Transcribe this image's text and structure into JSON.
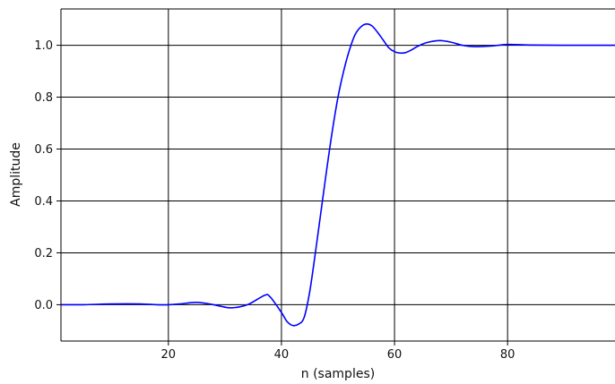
{
  "chart_data": {
    "type": "line",
    "title": "",
    "xlabel": "n (samples)",
    "ylabel": "Amplitude",
    "xlim": [
      1,
      99
    ],
    "ylim": [
      -0.14,
      1.14
    ],
    "grid": true,
    "xticks": [
      20,
      40,
      60,
      80
    ],
    "xtick_labels": [
      "20",
      "40",
      "60",
      "80"
    ],
    "yticks": [
      0.0,
      0.2,
      0.4,
      0.6,
      0.8,
      1.0
    ],
    "ytick_labels": [
      "0.0",
      "0.2",
      "0.4",
      "0.6",
      "0.8",
      "1.0"
    ],
    "series": [
      {
        "color": "#0000ff",
        "x": [
          1,
          5,
          10,
          15,
          18,
          20,
          22,
          25,
          28,
          31,
          34,
          37,
          38,
          40,
          41,
          42,
          43,
          44,
          45,
          46,
          47,
          48,
          49,
          50,
          51,
          52,
          53,
          54,
          55,
          56,
          57,
          58,
          59,
          60,
          61,
          62,
          63,
          64,
          65,
          66,
          68,
          70,
          72,
          74,
          77,
          80,
          84,
          90,
          99
        ],
        "y": [
          0.0,
          0.0,
          0.003,
          0.003,
          0.0,
          0.0,
          0.003,
          0.009,
          0.0,
          -0.012,
          0.0,
          0.036,
          0.03,
          -0.03,
          -0.065,
          -0.08,
          -0.075,
          -0.05,
          0.05,
          0.2,
          0.36,
          0.52,
          0.67,
          0.8,
          0.9,
          0.98,
          1.04,
          1.07,
          1.082,
          1.075,
          1.05,
          1.02,
          0.99,
          0.975,
          0.97,
          0.972,
          0.982,
          0.995,
          1.005,
          1.012,
          1.018,
          1.012,
          1.0,
          0.995,
          0.997,
          1.003,
          1.001,
          1.0,
          1.0
        ]
      }
    ]
  }
}
